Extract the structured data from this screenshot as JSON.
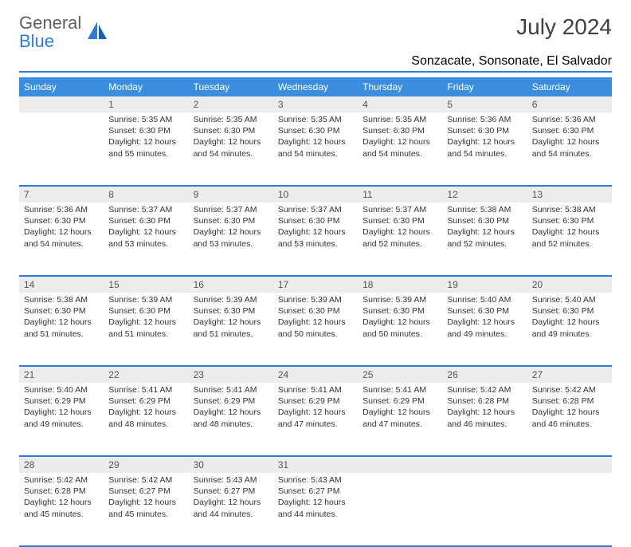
{
  "logo": {
    "general": "General",
    "blue": "Blue"
  },
  "title": "July 2024",
  "location": "Sonzacate, Sonsonate, El Salvador",
  "colors": {
    "header_bg": "#3b8ede",
    "header_text": "#ffffff",
    "daynum_bg": "#ececec",
    "border": "#2e7cd6",
    "logo_gray": "#5f5f5f",
    "logo_blue": "#2e7cd6"
  },
  "weekdays": [
    "Sunday",
    "Monday",
    "Tuesday",
    "Wednesday",
    "Thursday",
    "Friday",
    "Saturday"
  ],
  "weeks": [
    {
      "nums": [
        "",
        "1",
        "2",
        "3",
        "4",
        "5",
        "6"
      ],
      "cells": [
        null,
        {
          "sunrise": "Sunrise: 5:35 AM",
          "sunset": "Sunset: 6:30 PM",
          "day1": "Daylight: 12 hours",
          "day2": "and 55 minutes."
        },
        {
          "sunrise": "Sunrise: 5:35 AM",
          "sunset": "Sunset: 6:30 PM",
          "day1": "Daylight: 12 hours",
          "day2": "and 54 minutes."
        },
        {
          "sunrise": "Sunrise: 5:35 AM",
          "sunset": "Sunset: 6:30 PM",
          "day1": "Daylight: 12 hours",
          "day2": "and 54 minutes."
        },
        {
          "sunrise": "Sunrise: 5:35 AM",
          "sunset": "Sunset: 6:30 PM",
          "day1": "Daylight: 12 hours",
          "day2": "and 54 minutes."
        },
        {
          "sunrise": "Sunrise: 5:36 AM",
          "sunset": "Sunset: 6:30 PM",
          "day1": "Daylight: 12 hours",
          "day2": "and 54 minutes."
        },
        {
          "sunrise": "Sunrise: 5:36 AM",
          "sunset": "Sunset: 6:30 PM",
          "day1": "Daylight: 12 hours",
          "day2": "and 54 minutes."
        }
      ]
    },
    {
      "nums": [
        "7",
        "8",
        "9",
        "10",
        "11",
        "12",
        "13"
      ],
      "cells": [
        {
          "sunrise": "Sunrise: 5:36 AM",
          "sunset": "Sunset: 6:30 PM",
          "day1": "Daylight: 12 hours",
          "day2": "and 54 minutes."
        },
        {
          "sunrise": "Sunrise: 5:37 AM",
          "sunset": "Sunset: 6:30 PM",
          "day1": "Daylight: 12 hours",
          "day2": "and 53 minutes."
        },
        {
          "sunrise": "Sunrise: 5:37 AM",
          "sunset": "Sunset: 6:30 PM",
          "day1": "Daylight: 12 hours",
          "day2": "and 53 minutes."
        },
        {
          "sunrise": "Sunrise: 5:37 AM",
          "sunset": "Sunset: 6:30 PM",
          "day1": "Daylight: 12 hours",
          "day2": "and 53 minutes."
        },
        {
          "sunrise": "Sunrise: 5:37 AM",
          "sunset": "Sunset: 6:30 PM",
          "day1": "Daylight: 12 hours",
          "day2": "and 52 minutes."
        },
        {
          "sunrise": "Sunrise: 5:38 AM",
          "sunset": "Sunset: 6:30 PM",
          "day1": "Daylight: 12 hours",
          "day2": "and 52 minutes."
        },
        {
          "sunrise": "Sunrise: 5:38 AM",
          "sunset": "Sunset: 6:30 PM",
          "day1": "Daylight: 12 hours",
          "day2": "and 52 minutes."
        }
      ]
    },
    {
      "nums": [
        "14",
        "15",
        "16",
        "17",
        "18",
        "19",
        "20"
      ],
      "cells": [
        {
          "sunrise": "Sunrise: 5:38 AM",
          "sunset": "Sunset: 6:30 PM",
          "day1": "Daylight: 12 hours",
          "day2": "and 51 minutes."
        },
        {
          "sunrise": "Sunrise: 5:39 AM",
          "sunset": "Sunset: 6:30 PM",
          "day1": "Daylight: 12 hours",
          "day2": "and 51 minutes."
        },
        {
          "sunrise": "Sunrise: 5:39 AM",
          "sunset": "Sunset: 6:30 PM",
          "day1": "Daylight: 12 hours",
          "day2": "and 51 minutes."
        },
        {
          "sunrise": "Sunrise: 5:39 AM",
          "sunset": "Sunset: 6:30 PM",
          "day1": "Daylight: 12 hours",
          "day2": "and 50 minutes."
        },
        {
          "sunrise": "Sunrise: 5:39 AM",
          "sunset": "Sunset: 6:30 PM",
          "day1": "Daylight: 12 hours",
          "day2": "and 50 minutes."
        },
        {
          "sunrise": "Sunrise: 5:40 AM",
          "sunset": "Sunset: 6:30 PM",
          "day1": "Daylight: 12 hours",
          "day2": "and 49 minutes."
        },
        {
          "sunrise": "Sunrise: 5:40 AM",
          "sunset": "Sunset: 6:30 PM",
          "day1": "Daylight: 12 hours",
          "day2": "and 49 minutes."
        }
      ]
    },
    {
      "nums": [
        "21",
        "22",
        "23",
        "24",
        "25",
        "26",
        "27"
      ],
      "cells": [
        {
          "sunrise": "Sunrise: 5:40 AM",
          "sunset": "Sunset: 6:29 PM",
          "day1": "Daylight: 12 hours",
          "day2": "and 49 minutes."
        },
        {
          "sunrise": "Sunrise: 5:41 AM",
          "sunset": "Sunset: 6:29 PM",
          "day1": "Daylight: 12 hours",
          "day2": "and 48 minutes."
        },
        {
          "sunrise": "Sunrise: 5:41 AM",
          "sunset": "Sunset: 6:29 PM",
          "day1": "Daylight: 12 hours",
          "day2": "and 48 minutes."
        },
        {
          "sunrise": "Sunrise: 5:41 AM",
          "sunset": "Sunset: 6:29 PM",
          "day1": "Daylight: 12 hours",
          "day2": "and 47 minutes."
        },
        {
          "sunrise": "Sunrise: 5:41 AM",
          "sunset": "Sunset: 6:29 PM",
          "day1": "Daylight: 12 hours",
          "day2": "and 47 minutes."
        },
        {
          "sunrise": "Sunrise: 5:42 AM",
          "sunset": "Sunset: 6:28 PM",
          "day1": "Daylight: 12 hours",
          "day2": "and 46 minutes."
        },
        {
          "sunrise": "Sunrise: 5:42 AM",
          "sunset": "Sunset: 6:28 PM",
          "day1": "Daylight: 12 hours",
          "day2": "and 46 minutes."
        }
      ]
    },
    {
      "nums": [
        "28",
        "29",
        "30",
        "31",
        "",
        "",
        ""
      ],
      "cells": [
        {
          "sunrise": "Sunrise: 5:42 AM",
          "sunset": "Sunset: 6:28 PM",
          "day1": "Daylight: 12 hours",
          "day2": "and 45 minutes."
        },
        {
          "sunrise": "Sunrise: 5:42 AM",
          "sunset": "Sunset: 6:27 PM",
          "day1": "Daylight: 12 hours",
          "day2": "and 45 minutes."
        },
        {
          "sunrise": "Sunrise: 5:43 AM",
          "sunset": "Sunset: 6:27 PM",
          "day1": "Daylight: 12 hours",
          "day2": "and 44 minutes."
        },
        {
          "sunrise": "Sunrise: 5:43 AM",
          "sunset": "Sunset: 6:27 PM",
          "day1": "Daylight: 12 hours",
          "day2": "and 44 minutes."
        },
        null,
        null,
        null
      ]
    }
  ]
}
